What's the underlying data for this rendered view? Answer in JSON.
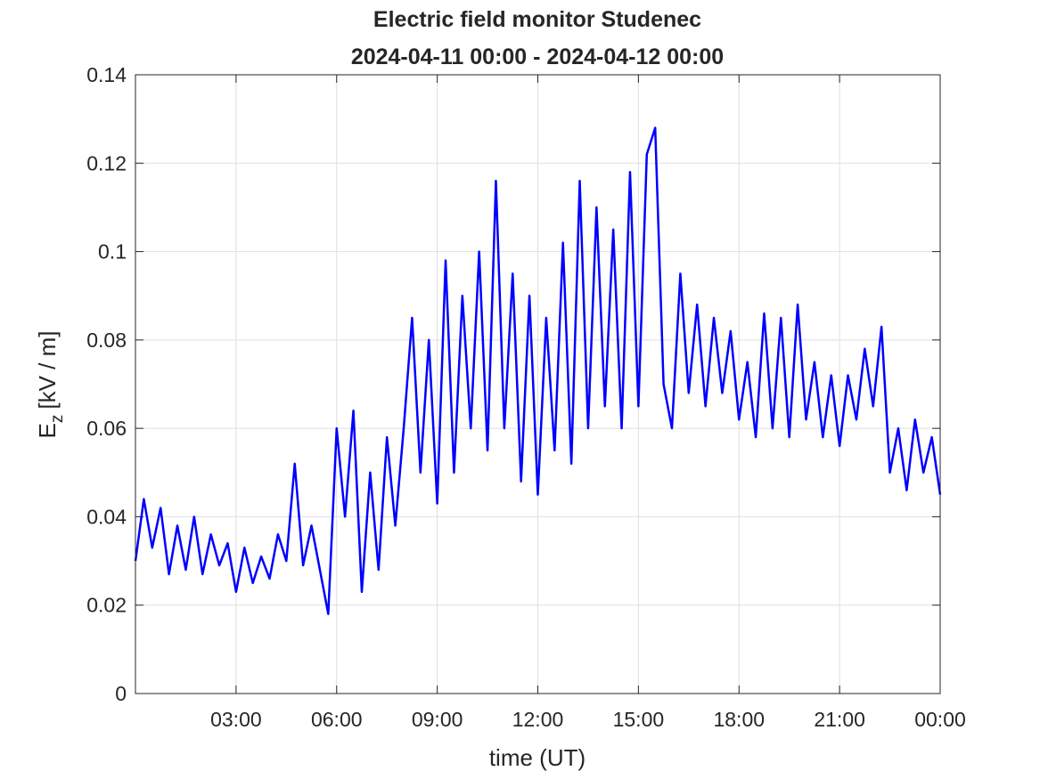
{
  "chart_data": {
    "type": "line",
    "title": "Electric field monitor Studenec",
    "subtitle": "2024-04-11 00:00 - 2024-04-12 00:00",
    "xlabel": "time (UT)",
    "ylabel": {
      "main": "E",
      "sub": "z",
      "unit": "[kV / m]"
    },
    "xlim": [
      0,
      24
    ],
    "xticks": [
      {
        "value": 3,
        "label": "03:00"
      },
      {
        "value": 6,
        "label": "06:00"
      },
      {
        "value": 9,
        "label": "09:00"
      },
      {
        "value": 12,
        "label": "12:00"
      },
      {
        "value": 15,
        "label": "15:00"
      },
      {
        "value": 18,
        "label": "18:00"
      },
      {
        "value": 21,
        "label": "21:00"
      },
      {
        "value": 24,
        "label": "00:00"
      }
    ],
    "ylim": [
      0,
      0.14
    ],
    "yticks": [
      0,
      0.02,
      0.04,
      0.06,
      0.08,
      0.1,
      0.12,
      0.14
    ],
    "grid": true,
    "x": [
      0,
      0.25,
      0.5,
      0.75,
      1,
      1.25,
      1.5,
      1.75,
      2,
      2.25,
      2.5,
      2.75,
      3,
      3.25,
      3.5,
      3.75,
      4,
      4.25,
      4.5,
      4.75,
      5,
      5.25,
      5.5,
      5.75,
      6,
      6.25,
      6.5,
      6.75,
      7,
      7.25,
      7.5,
      7.75,
      8,
      8.25,
      8.5,
      8.75,
      9,
      9.25,
      9.5,
      9.75,
      10,
      10.25,
      10.5,
      10.75,
      11,
      11.25,
      11.5,
      11.75,
      12,
      12.25,
      12.5,
      12.75,
      13,
      13.25,
      13.5,
      13.75,
      14,
      14.25,
      14.5,
      14.75,
      15,
      15.25,
      15.5,
      15.75,
      16,
      16.25,
      16.5,
      16.75,
      17,
      17.25,
      17.5,
      17.75,
      18,
      18.25,
      18.5,
      18.75,
      19,
      19.25,
      19.5,
      19.75,
      20,
      20.25,
      20.5,
      20.75,
      21,
      21.25,
      21.5,
      21.75,
      22,
      22.25,
      22.5,
      22.75,
      23,
      23.25,
      23.5,
      23.75,
      24
    ],
    "series": [
      {
        "color": "#0000ff",
        "values": [
          0.03,
          0.044,
          0.033,
          0.042,
          0.027,
          0.038,
          0.028,
          0.04,
          0.027,
          0.036,
          0.029,
          0.034,
          0.023,
          0.033,
          0.025,
          0.031,
          0.026,
          0.036,
          0.03,
          0.052,
          0.029,
          0.038,
          0.028,
          0.018,
          0.06,
          0.04,
          0.064,
          0.023,
          0.05,
          0.028,
          0.058,
          0.038,
          0.06,
          0.085,
          0.05,
          0.08,
          0.043,
          0.098,
          0.05,
          0.09,
          0.06,
          0.1,
          0.055,
          0.116,
          0.06,
          0.095,
          0.048,
          0.09,
          0.045,
          0.085,
          0.055,
          0.102,
          0.052,
          0.116,
          0.06,
          0.11,
          0.065,
          0.105,
          0.06,
          0.118,
          0.065,
          0.122,
          0.128,
          0.07,
          0.06,
          0.095,
          0.068,
          0.088,
          0.065,
          0.085,
          0.068,
          0.082,
          0.062,
          0.075,
          0.058,
          0.086,
          0.06,
          0.085,
          0.058,
          0.088,
          0.062,
          0.075,
          0.058,
          0.072,
          0.056,
          0.072,
          0.062,
          0.078,
          0.065,
          0.083,
          0.05,
          0.06,
          0.046,
          0.062,
          0.05,
          0.058,
          0.045
        ]
      }
    ]
  }
}
